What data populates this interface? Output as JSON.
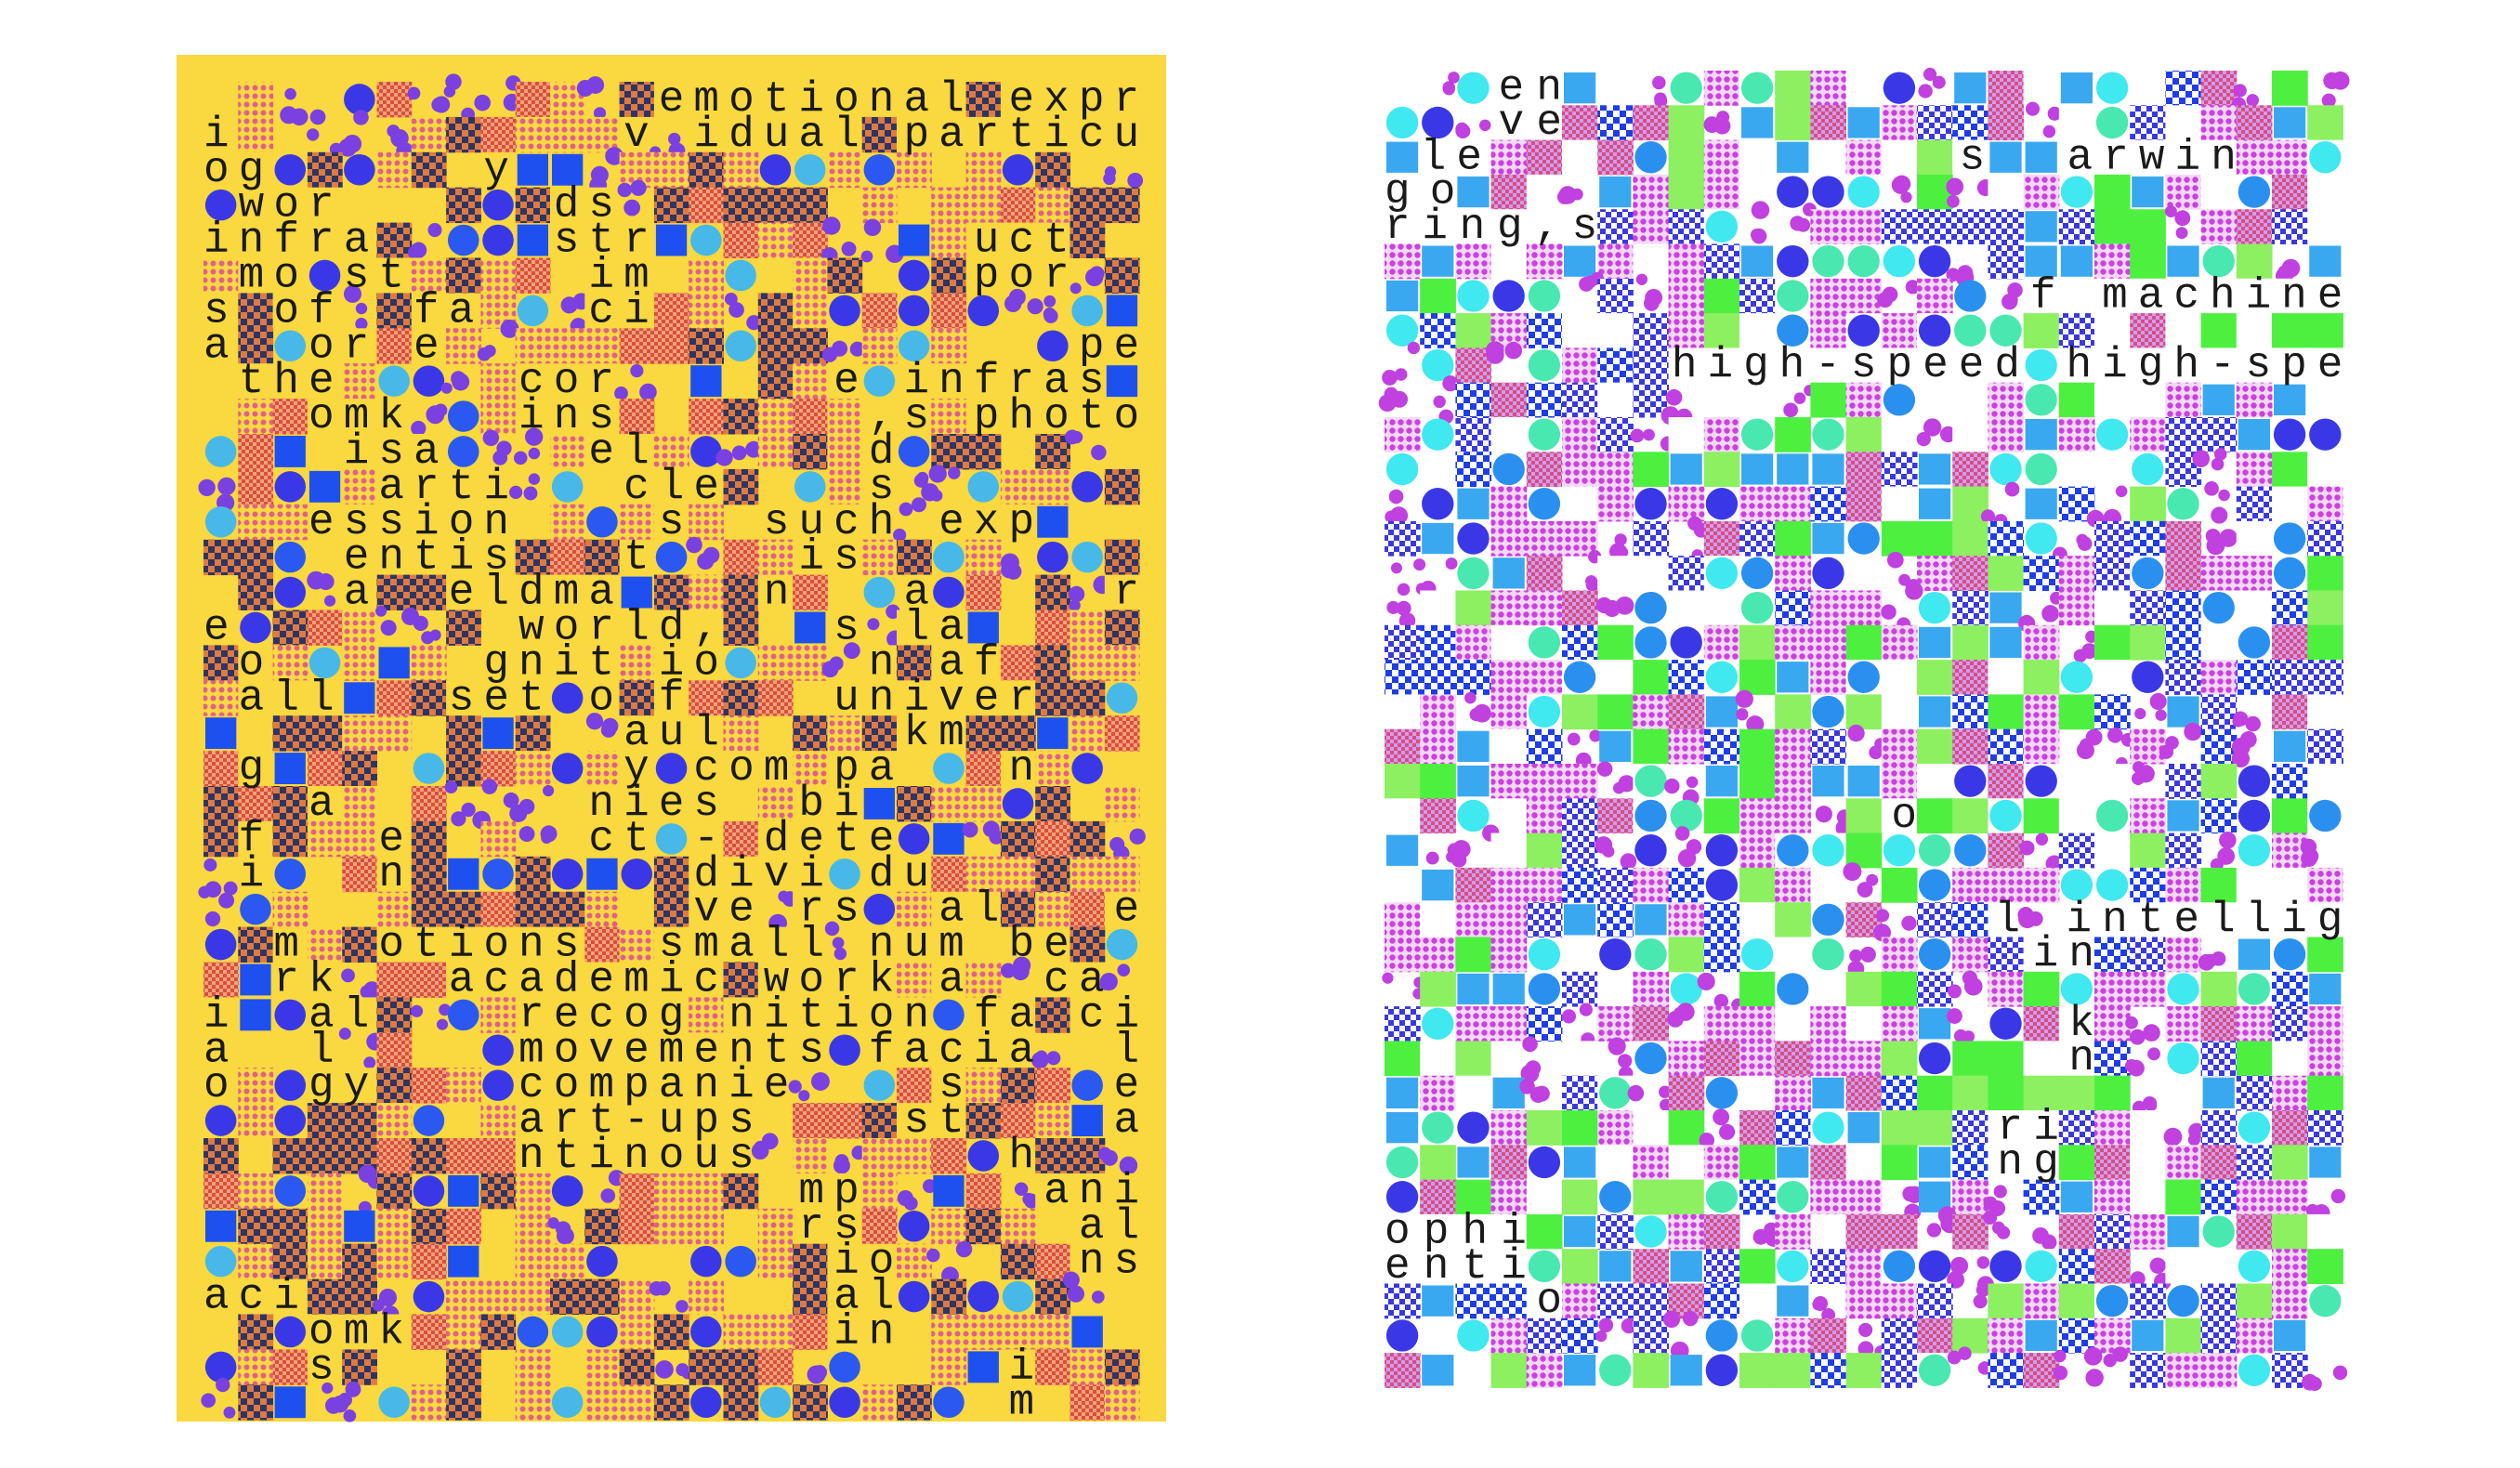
{
  "posters": [
    {
      "lines": [
        "             emotional expr",
        "i           v idual particu",
        "og      y                  ",
        " wor      ds               ",
        "infra     str         uct  ",
        " mo st     im         por  ",
        "s of  fa   ci              ",
        "a  or e                  pe",
        " the     cor      e infras ",
        "   omk   ins       ,s photo",
        "    isa    el      d       ",
        "     arti   cle    s       ",
        "   ession    s  such exp   ",
        "    entis   t    is        ",
        "    a  eldma    n   a     r",
        "e        world,   s la     ",
        " o      gnit io    n af    ",
        " all   set o f    univer   ",
        "            aul     km     ",
        " g          y com pa   n   ",
        "   a       nies  bi        ",
        " f   e     ct - dete       ",
        " i   n        divi du      ",
        "              ve rs  al   e",
        "  m  otions  small num be  ",
        "  rk   academic work a  ca ",
        "i  al    recog nition fa ci",
        "a  l     movements facia  l",
        "o  gy    companie    s    e",
        "         art-ups    st    a",
        "         ntinous       h   ",
        "                 mp     ani",
        "                 rs      al",
        "                  io     ns",
        "aci               al       ",
        "   omk            in       ",
        "   s                   i   ",
        "                       m   "
      ]
    },
    {
      "lines": [
        "   en",
        "   ve",
        " le             s  arwin",
        "go",
        "ring,s",
        "                  f machine",
        "        high-speed high-spe",
        "              o",
        "                 l intellig",
        "                  in",
        "                   k",
        "                   n",
        "                 ri",
        "                 ng",
        "ophi",
        "enti",
        "    o"
      ]
    }
  ]
}
